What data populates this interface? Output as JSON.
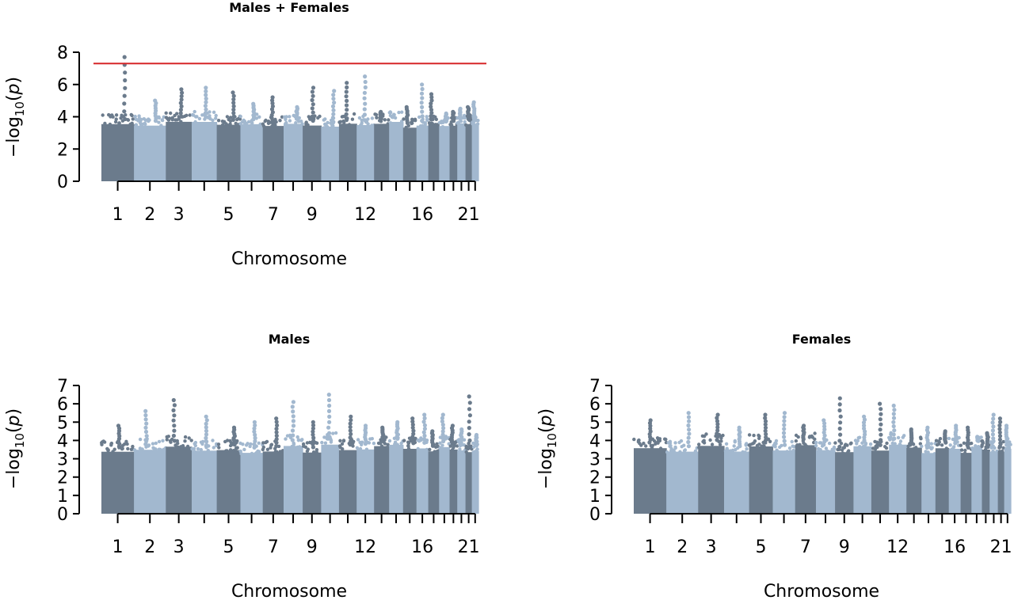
{
  "chart_data": [
    {
      "type": "scatter",
      "title": "Males + Females",
      "xlabel": "Chromosome",
      "ylabel": "−log10(p)",
      "ylim": [
        0,
        8
      ],
      "yticks": [
        0,
        2,
        4,
        6,
        8
      ],
      "xtick_labels": [
        "1",
        "2",
        "3",
        "5",
        "7",
        "9",
        "12",
        "16",
        "21"
      ],
      "significance_line": 7.3,
      "chromosomes": [
        {
          "chr": 1,
          "peak": 7.7
        },
        {
          "chr": 2,
          "peak": 5.0
        },
        {
          "chr": 3,
          "peak": 5.7
        },
        {
          "chr": 4,
          "peak": 5.8
        },
        {
          "chr": 5,
          "peak": 5.5
        },
        {
          "chr": 6,
          "peak": 4.8
        },
        {
          "chr": 7,
          "peak": 5.2
        },
        {
          "chr": 8,
          "peak": 4.6
        },
        {
          "chr": 9,
          "peak": 5.8
        },
        {
          "chr": 10,
          "peak": 5.6
        },
        {
          "chr": 11,
          "peak": 6.1
        },
        {
          "chr": 12,
          "peak": 6.5
        },
        {
          "chr": 13,
          "peak": 4.3
        },
        {
          "chr": 14,
          "peak": 4.0
        },
        {
          "chr": 15,
          "peak": 4.6
        },
        {
          "chr": 16,
          "peak": 6.0
        },
        {
          "chr": 17,
          "peak": 5.4
        },
        {
          "chr": 18,
          "peak": 4.2
        },
        {
          "chr": 19,
          "peak": 4.3
        },
        {
          "chr": 20,
          "peak": 4.5
        },
        {
          "chr": 21,
          "peak": 4.6
        },
        {
          "chr": 22,
          "peak": 4.9
        }
      ]
    },
    {
      "type": "scatter",
      "title": "Males",
      "xlabel": "Chromosome",
      "ylabel": "−log10(p)",
      "ylim": [
        0,
        7
      ],
      "yticks": [
        0,
        1,
        2,
        3,
        4,
        5,
        6,
        7
      ],
      "xtick_labels": [
        "1",
        "2",
        "3",
        "5",
        "7",
        "9",
        "12",
        "16",
        "21"
      ],
      "chromosomes": [
        {
          "chr": 1,
          "peak": 4.8
        },
        {
          "chr": 2,
          "peak": 5.6
        },
        {
          "chr": 3,
          "peak": 6.2
        },
        {
          "chr": 4,
          "peak": 5.3
        },
        {
          "chr": 5,
          "peak": 4.7
        },
        {
          "chr": 6,
          "peak": 5.0
        },
        {
          "chr": 7,
          "peak": 5.2
        },
        {
          "chr": 8,
          "peak": 6.1
        },
        {
          "chr": 9,
          "peak": 5.0
        },
        {
          "chr": 10,
          "peak": 6.5
        },
        {
          "chr": 11,
          "peak": 5.3
        },
        {
          "chr": 12,
          "peak": 4.8
        },
        {
          "chr": 13,
          "peak": 4.7
        },
        {
          "chr": 14,
          "peak": 5.0
        },
        {
          "chr": 15,
          "peak": 5.2
        },
        {
          "chr": 16,
          "peak": 5.4
        },
        {
          "chr": 17,
          "peak": 4.5
        },
        {
          "chr": 18,
          "peak": 5.4
        },
        {
          "chr": 19,
          "peak": 4.8
        },
        {
          "chr": 20,
          "peak": 4.6
        },
        {
          "chr": 21,
          "peak": 6.4
        },
        {
          "chr": 22,
          "peak": 4.3
        }
      ]
    },
    {
      "type": "scatter",
      "title": "Females",
      "xlabel": "Chromosome",
      "ylabel": "−log10(p)",
      "ylim": [
        0,
        7
      ],
      "yticks": [
        0,
        1,
        2,
        3,
        4,
        5,
        6,
        7
      ],
      "xtick_labels": [
        "1",
        "2",
        "3",
        "5",
        "7",
        "9",
        "12",
        "16",
        "21"
      ],
      "chromosomes": [
        {
          "chr": 1,
          "peak": 5.1
        },
        {
          "chr": 2,
          "peak": 5.5
        },
        {
          "chr": 3,
          "peak": 5.4
        },
        {
          "chr": 4,
          "peak": 4.7
        },
        {
          "chr": 5,
          "peak": 5.4
        },
        {
          "chr": 6,
          "peak": 5.5
        },
        {
          "chr": 7,
          "peak": 4.8
        },
        {
          "chr": 8,
          "peak": 5.1
        },
        {
          "chr": 9,
          "peak": 6.3
        },
        {
          "chr": 10,
          "peak": 5.3
        },
        {
          "chr": 11,
          "peak": 6.0
        },
        {
          "chr": 12,
          "peak": 5.9
        },
        {
          "chr": 13,
          "peak": 4.6
        },
        {
          "chr": 14,
          "peak": 4.7
        },
        {
          "chr": 15,
          "peak": 4.5
        },
        {
          "chr": 16,
          "peak": 4.8
        },
        {
          "chr": 17,
          "peak": 4.7
        },
        {
          "chr": 18,
          "peak": 4.2
        },
        {
          "chr": 19,
          "peak": 4.4
        },
        {
          "chr": 20,
          "peak": 5.4
        },
        {
          "chr": 21,
          "peak": 5.2
        },
        {
          "chr": 22,
          "peak": 4.8
        }
      ]
    }
  ],
  "colors": {
    "dark": "#6b7b8c",
    "light": "#a2b8cf",
    "significance": "#d62728"
  }
}
